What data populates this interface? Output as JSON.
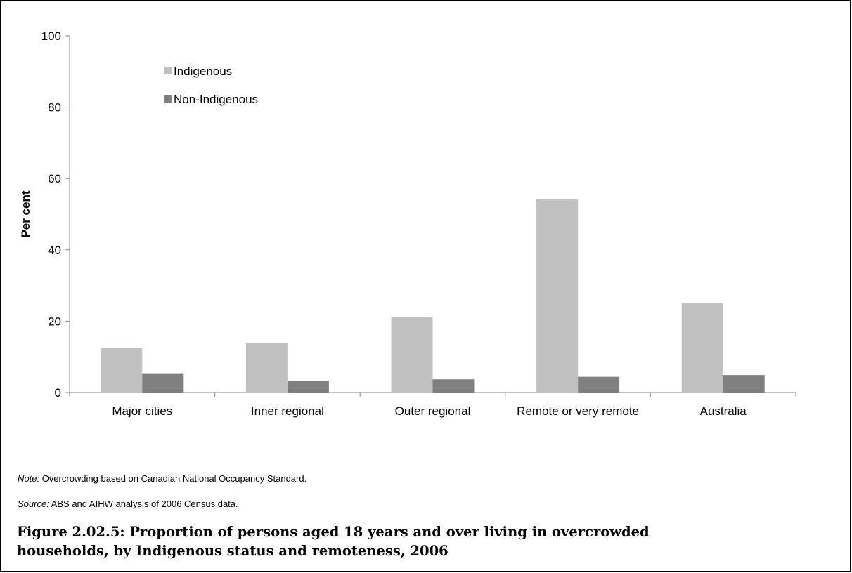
{
  "chart_data": {
    "type": "bar",
    "categories": [
      "Major cities",
      "Inner regional",
      "Outer regional",
      "Remote or very remote",
      "Australia"
    ],
    "series": [
      {
        "name": "Indigenous",
        "values": [
          12.6,
          14.0,
          21.2,
          54.2,
          25.1
        ],
        "color": "#c0c0c0"
      },
      {
        "name": "Non-Indigenous",
        "values": [
          5.4,
          3.3,
          3.7,
          4.4,
          4.9
        ],
        "color": "#808080"
      }
    ],
    "ylabel": "Per cent",
    "xlabel": "",
    "ylim": [
      0,
      100
    ],
    "yticks": [
      0,
      20,
      40,
      60,
      80,
      100
    ],
    "grid": false,
    "legend": "top-left"
  },
  "note": {
    "label": "Note:",
    "text": " Overcrowding based on Canadian National Occupancy Standard."
  },
  "source": {
    "label": "Source:",
    "text": " ABS and AIHW analysis of 2006 Census data."
  },
  "caption": "Figure 2.02.5: Proportion of persons aged 18 years and over living in overcrowded households, by Indigenous status and remoteness, 2006"
}
